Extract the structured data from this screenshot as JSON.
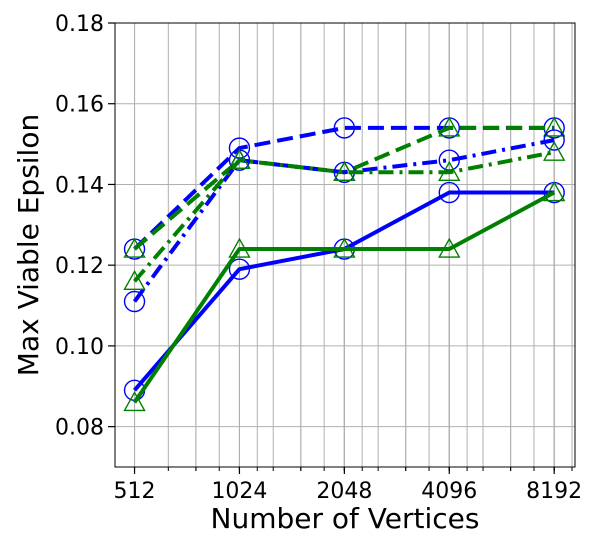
{
  "chart_data": {
    "type": "line",
    "xlabel": "Number of Vertices",
    "ylabel": "Max Viable Epsilon",
    "x_scale": "log2",
    "x": [
      512,
      1024,
      2048,
      4096,
      8192
    ],
    "x_tick_labels": [
      "512",
      "1024",
      "2048",
      "4096",
      "8192"
    ],
    "xlim": [
      450,
      9400
    ],
    "ylim": [
      0.07,
      0.18
    ],
    "y_ticks": [
      0.08,
      0.1,
      0.12,
      0.14,
      0.16,
      0.18
    ],
    "y_tick_labels": [
      "0.08",
      "0.10",
      "0.12",
      "0.14",
      "0.16",
      "0.18"
    ],
    "grid": true,
    "legend": "none",
    "series": [
      {
        "color": "#0000ff",
        "line_style": "solid",
        "marker": "circle",
        "values": [
          0.089,
          0.119,
          0.124,
          0.138,
          0.138
        ]
      },
      {
        "color": "#008000",
        "line_style": "solid",
        "marker": "triangle",
        "values": [
          0.086,
          0.124,
          0.124,
          0.124,
          0.138
        ]
      },
      {
        "color": "#0000ff",
        "line_style": "dashed",
        "marker": "circle",
        "values": [
          0.124,
          0.149,
          0.154,
          0.154,
          0.154
        ]
      },
      {
        "color": "#008000",
        "line_style": "dashed",
        "marker": "triangle",
        "values": [
          0.124,
          0.146,
          0.143,
          0.154,
          0.154
        ]
      },
      {
        "color": "#0000ff",
        "line_style": "dashdot",
        "marker": "circle",
        "values": [
          0.111,
          0.146,
          0.143,
          0.146,
          0.151
        ]
      },
      {
        "color": "#008000",
        "line_style": "dashdot",
        "marker": "triangle",
        "values": [
          0.116,
          0.146,
          0.143,
          0.143,
          0.148
        ]
      }
    ]
  }
}
